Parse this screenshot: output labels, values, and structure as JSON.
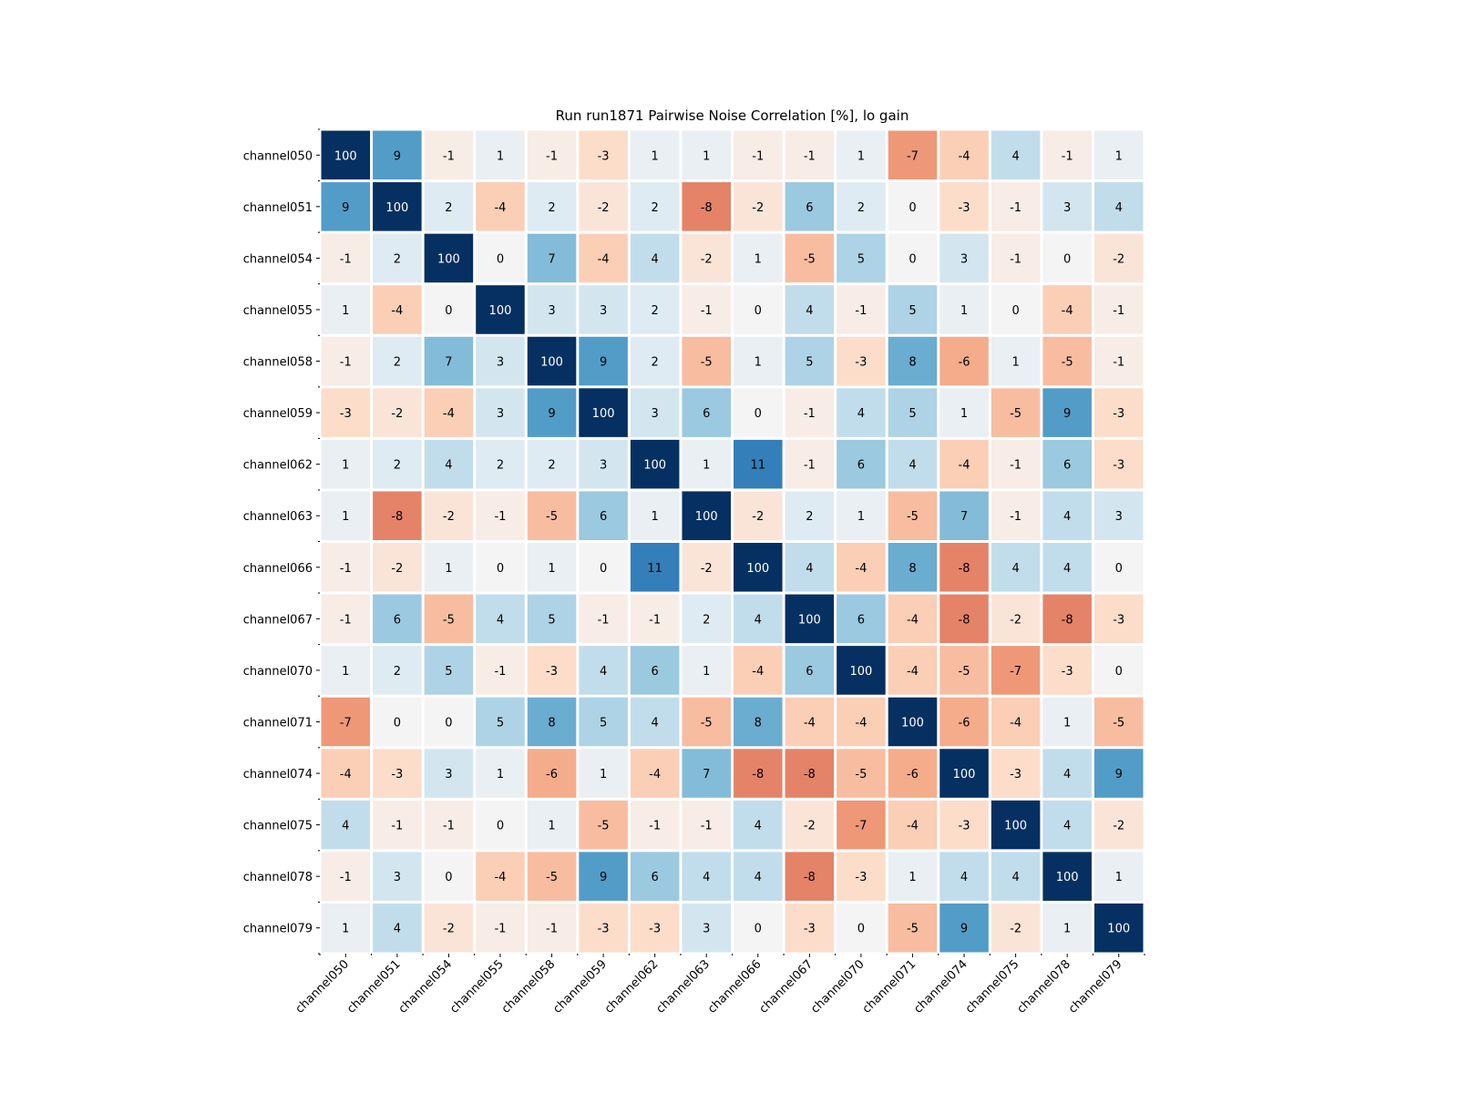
{
  "chart_data": {
    "type": "heatmap",
    "title": "Run run1871 Pairwise Noise Correlation [%], lo gain",
    "xlabel": "",
    "ylabel": "",
    "colormap": "RdBu_r",
    "color_range": [
      -16,
      16
    ],
    "labels": [
      "channel050",
      "channel051",
      "channel054",
      "channel055",
      "channel058",
      "channel059",
      "channel062",
      "channel063",
      "channel066",
      "channel067",
      "channel070",
      "channel071",
      "channel074",
      "channel075",
      "channel078",
      "channel079"
    ],
    "values": [
      [
        100,
        9,
        -1,
        1,
        -1,
        -3,
        1,
        1,
        -1,
        -1,
        1,
        -7,
        -4,
        4,
        -1,
        1
      ],
      [
        9,
        100,
        2,
        -4,
        2,
        -2,
        2,
        -8,
        -2,
        6,
        2,
        0,
        -3,
        -1,
        3,
        4
      ],
      [
        -1,
        2,
        100,
        0,
        7,
        -4,
        4,
        -2,
        1,
        -5,
        5,
        0,
        3,
        -1,
        0,
        -2
      ],
      [
        1,
        -4,
        0,
        100,
        3,
        3,
        2,
        -1,
        0,
        4,
        -1,
        5,
        1,
        0,
        -4,
        -1
      ],
      [
        -1,
        2,
        7,
        3,
        100,
        9,
        2,
        -5,
        1,
        5,
        -3,
        8,
        -6,
        1,
        -5,
        -1
      ],
      [
        -3,
        -2,
        -4,
        3,
        9,
        100,
        3,
        6,
        0,
        -1,
        4,
        5,
        1,
        -5,
        9,
        -3
      ],
      [
        1,
        2,
        4,
        2,
        2,
        3,
        100,
        1,
        11,
        -1,
        6,
        4,
        -4,
        -1,
        6,
        -3
      ],
      [
        1,
        -8,
        -2,
        -1,
        -5,
        6,
        1,
        100,
        -2,
        2,
        1,
        -5,
        7,
        -1,
        4,
        3
      ],
      [
        -1,
        -2,
        1,
        0,
        1,
        0,
        11,
        -2,
        100,
        4,
        -4,
        8,
        -8,
        4,
        4,
        0
      ],
      [
        -1,
        6,
        -5,
        4,
        5,
        -1,
        -1,
        2,
        4,
        100,
        6,
        -4,
        -8,
        -2,
        -8,
        -3
      ],
      [
        1,
        2,
        5,
        -1,
        -3,
        4,
        6,
        1,
        -4,
        6,
        100,
        -4,
        -5,
        -7,
        -3,
        0
      ],
      [
        -7,
        0,
        0,
        5,
        8,
        5,
        4,
        -5,
        8,
        -4,
        -4,
        100,
        -6,
        -4,
        1,
        -5
      ],
      [
        -4,
        -3,
        3,
        1,
        -6,
        1,
        -4,
        7,
        -8,
        -8,
        -5,
        -6,
        100,
        -3,
        4,
        9
      ],
      [
        4,
        -1,
        -1,
        0,
        1,
        -5,
        -1,
        -1,
        4,
        -2,
        -7,
        -4,
        -3,
        100,
        4,
        -2
      ],
      [
        -1,
        3,
        0,
        -4,
        -5,
        9,
        6,
        4,
        4,
        -8,
        -3,
        1,
        4,
        4,
        100,
        1
      ],
      [
        1,
        4,
        -2,
        -1,
        -1,
        -3,
        -3,
        3,
        0,
        -3,
        0,
        -5,
        9,
        -2,
        1,
        100
      ]
    ]
  }
}
